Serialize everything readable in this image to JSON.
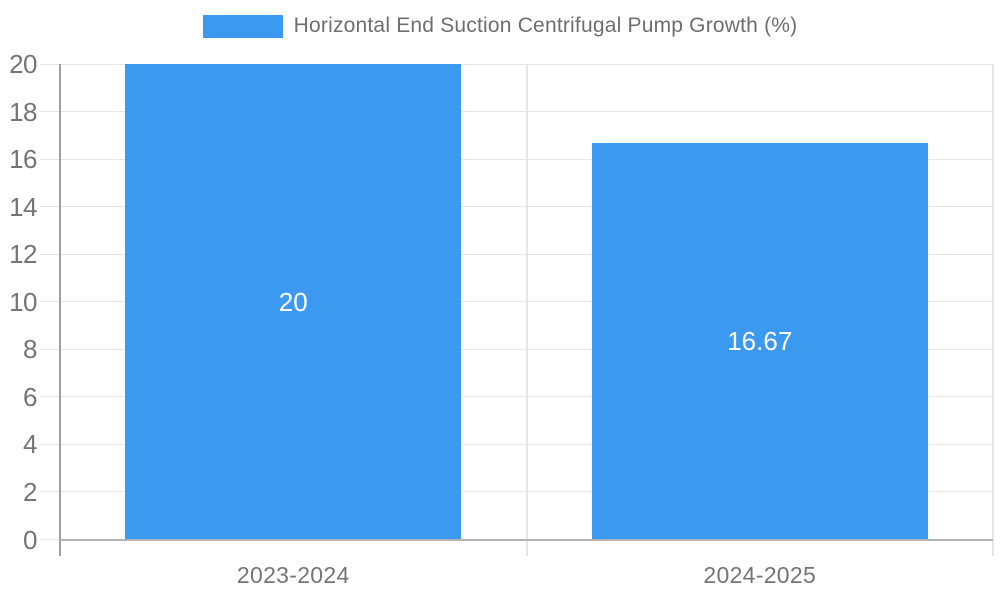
{
  "legend": {
    "label": "Horizontal End Suction Centrifugal Pump Growth (%)",
    "position": "top-center"
  },
  "colors": {
    "bar": "#3b99f0",
    "bar_label_text": "#ffffff",
    "axis_text": "#757575",
    "legend_text": "#6e6e6e",
    "gridline": "#e6e6e6",
    "axis_line": "#9e9e9e",
    "baseline": "#b3b3b3",
    "background": "#ffffff"
  },
  "chart_data": {
    "type": "bar",
    "title": "Horizontal End Suction Centrifugal Pump Growth (%)",
    "categories": [
      "2023-2024",
      "2024-2025"
    ],
    "values": [
      20,
      16.67
    ],
    "value_labels": [
      "20",
      "16.67"
    ],
    "xlabel": "",
    "ylabel": "",
    "ylim": [
      0,
      20
    ],
    "ytick_step": 2,
    "ytick_labels": [
      "0",
      "2",
      "4",
      "6",
      "8",
      "10",
      "12",
      "14",
      "16",
      "18",
      "20"
    ],
    "grid": true,
    "legend_position": "top-center",
    "series_color": "#3b99f0"
  }
}
